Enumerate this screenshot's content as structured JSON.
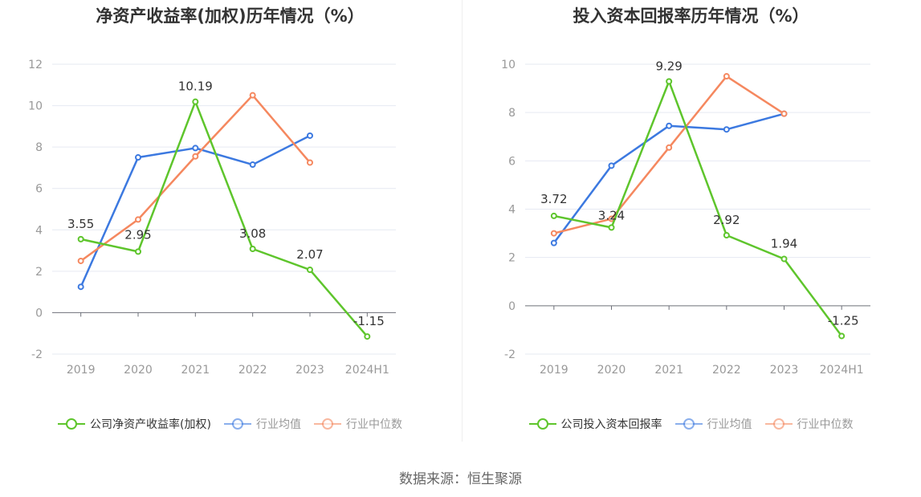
{
  "source": "数据来源：恒生聚源",
  "chart_data": [
    {
      "type": "line",
      "title": "净资产收益率(加权)历年情况（%）",
      "categories": [
        "2019",
        "2020",
        "2021",
        "2022",
        "2023",
        "2024H1"
      ],
      "ylim": [
        -2,
        12
      ],
      "yticks": [
        -2,
        0,
        2,
        4,
        6,
        8,
        10,
        12
      ],
      "grid": true,
      "legend_position": "bottom",
      "series": [
        {
          "name": "公司净资产收益率(加权)",
          "color": "#5ec52c",
          "labeled": true,
          "values": [
            3.55,
            2.95,
            10.19,
            3.08,
            2.07,
            -1.15
          ],
          "labels": [
            "3.55",
            "2.95",
            "10.19",
            "3.08",
            "2.07",
            "-1.15"
          ]
        },
        {
          "name": "行业均值",
          "color": "#3c79e0",
          "labeled": false,
          "values": [
            1.25,
            7.5,
            7.95,
            7.15,
            8.55,
            null
          ]
        },
        {
          "name": "行业中位数",
          "color": "#f5885f",
          "labeled": false,
          "values": [
            2.5,
            4.5,
            7.55,
            10.5,
            7.25,
            null
          ]
        }
      ]
    },
    {
      "type": "line",
      "title": "投入资本回报率历年情况（%）",
      "categories": [
        "2019",
        "2020",
        "2021",
        "2022",
        "2023",
        "2024H1"
      ],
      "ylim": [
        -2,
        10
      ],
      "yticks": [
        -2,
        0,
        2,
        4,
        6,
        8,
        10
      ],
      "grid": true,
      "legend_position": "bottom",
      "series": [
        {
          "name": "公司投入资本回报率",
          "color": "#5ec52c",
          "labeled": true,
          "values": [
            3.72,
            3.24,
            9.29,
            2.92,
            1.94,
            -1.25
          ],
          "labels": [
            "3.72",
            "3.24",
            "9.29",
            "2.92",
            "1.94",
            "-1.25"
          ]
        },
        {
          "name": "行业均值",
          "color": "#3c79e0",
          "labeled": false,
          "values": [
            2.6,
            5.8,
            7.45,
            7.3,
            7.95,
            null
          ]
        },
        {
          "name": "行业中位数",
          "color": "#f5885f",
          "labeled": false,
          "values": [
            3.0,
            3.6,
            6.55,
            9.5,
            7.95,
            null
          ]
        }
      ]
    }
  ]
}
